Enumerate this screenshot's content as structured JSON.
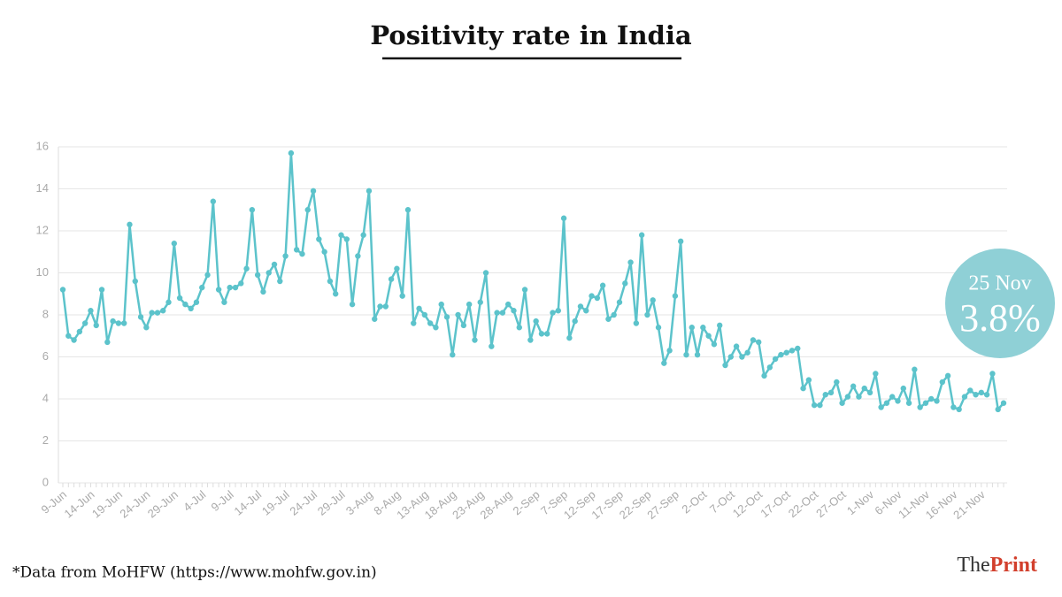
{
  "chart_data": {
    "type": "line",
    "title": "Positivity rate in India",
    "categories": [
      "9-Jun",
      null,
      null,
      null,
      null,
      "14-Jun",
      null,
      null,
      null,
      null,
      "19-Jun",
      null,
      null,
      null,
      null,
      "24-Jun",
      null,
      null,
      null,
      null,
      "29-Jun",
      null,
      null,
      null,
      null,
      "4-Jul",
      null,
      null,
      null,
      null,
      "9-Jul",
      null,
      null,
      null,
      null,
      "14-Jul",
      null,
      null,
      null,
      null,
      "19-Jul",
      null,
      null,
      null,
      null,
      "24-Jul",
      null,
      null,
      null,
      null,
      "29-Jul",
      null,
      null,
      null,
      null,
      "3-Aug",
      null,
      null,
      null,
      null,
      "8-Aug",
      null,
      null,
      null,
      null,
      "13-Aug",
      null,
      null,
      null,
      null,
      "18-Aug",
      null,
      null,
      null,
      null,
      "23-Aug",
      null,
      null,
      null,
      null,
      "28-Aug",
      null,
      null,
      null,
      null,
      "2-Sep",
      null,
      null,
      null,
      null,
      "7-Sep",
      null,
      null,
      null,
      null,
      "12-Sep",
      null,
      null,
      null,
      null,
      "17-Sep",
      null,
      null,
      null,
      null,
      "22-Sep",
      null,
      null,
      null,
      null,
      "27-Sep",
      null,
      null,
      null,
      null,
      "2-Oct",
      null,
      null,
      null,
      null,
      "7-Oct",
      null,
      null,
      null,
      null,
      "12-Oct",
      null,
      null,
      null,
      null,
      "17-Oct",
      null,
      null,
      null,
      null,
      "22-Oct",
      null,
      null,
      null,
      null,
      "27-Oct",
      null,
      null,
      null,
      null,
      "1-Nov",
      null,
      null,
      null,
      null,
      "6-Nov",
      null,
      null,
      null,
      null,
      "11-Nov",
      null,
      null,
      null,
      null,
      "16-Nov",
      null,
      null,
      null,
      null,
      "21-Nov",
      null,
      null,
      null,
      null
    ],
    "values": [
      9.2,
      7.0,
      6.8,
      7.2,
      7.6,
      8.2,
      7.5,
      9.2,
      6.7,
      7.7,
      7.6,
      7.6,
      12.3,
      9.6,
      7.9,
      7.4,
      8.1,
      8.1,
      8.2,
      8.6,
      11.4,
      8.8,
      8.5,
      8.3,
      8.6,
      9.3,
      9.9,
      13.4,
      9.2,
      8.6,
      9.3,
      9.3,
      9.5,
      10.2,
      13.0,
      9.9,
      9.1,
      10.0,
      10.4,
      9.6,
      10.8,
      15.7,
      11.1,
      10.9,
      13.0,
      13.9,
      11.6,
      11.0,
      9.6,
      9.0,
      11.8,
      11.6,
      8.5,
      10.8,
      11.8,
      13.9,
      7.8,
      8.4,
      8.4,
      9.7,
      10.2,
      8.9,
      13.0,
      7.6,
      8.3,
      8.0,
      7.6,
      7.4,
      8.5,
      7.9,
      6.1,
      8.0,
      7.5,
      8.5,
      6.8,
      8.6,
      10.0,
      6.5,
      8.1,
      8.1,
      8.5,
      8.2,
      7.4,
      9.2,
      6.8,
      7.7,
      7.1,
      7.1,
      8.1,
      8.2,
      12.6,
      6.9,
      7.7,
      8.4,
      8.2,
      8.9,
      8.8,
      9.4,
      7.8,
      8.0,
      8.6,
      9.5,
      10.5,
      7.6,
      11.8,
      8.0,
      8.7,
      7.4,
      5.7,
      6.3,
      8.9,
      11.5,
      6.1,
      7.4,
      6.1,
      7.4,
      7.0,
      6.6,
      7.5,
      5.6,
      6.0,
      6.5,
      6.0,
      6.2,
      6.8,
      6.7,
      5.1,
      5.5,
      5.9,
      6.1,
      6.2,
      6.3,
      6.4,
      4.5,
      4.9,
      3.7,
      3.7,
      4.2,
      4.3,
      4.8,
      3.8,
      4.1,
      4.6,
      4.1,
      4.5,
      4.3,
      5.2,
      3.6,
      3.8,
      4.1,
      3.9,
      4.5,
      3.8,
      5.4,
      3.6,
      3.8,
      4.0,
      3.9,
      4.8,
      5.1,
      3.6,
      3.5,
      4.1,
      4.4,
      4.2,
      4.3,
      4.2,
      5.2,
      3.5,
      3.8
    ],
    "color": "#5cc3cb",
    "ylim": [
      0,
      16
    ],
    "yticks": [
      0,
      2,
      4,
      6,
      8,
      10,
      12,
      14,
      16
    ],
    "grid": true,
    "annotations": [
      "25 Nov",
      "3.8%"
    ],
    "source": "*Data from MoHFW (https://www.mohfw.gov.in)",
    "brand": [
      "The",
      "Print"
    ]
  }
}
